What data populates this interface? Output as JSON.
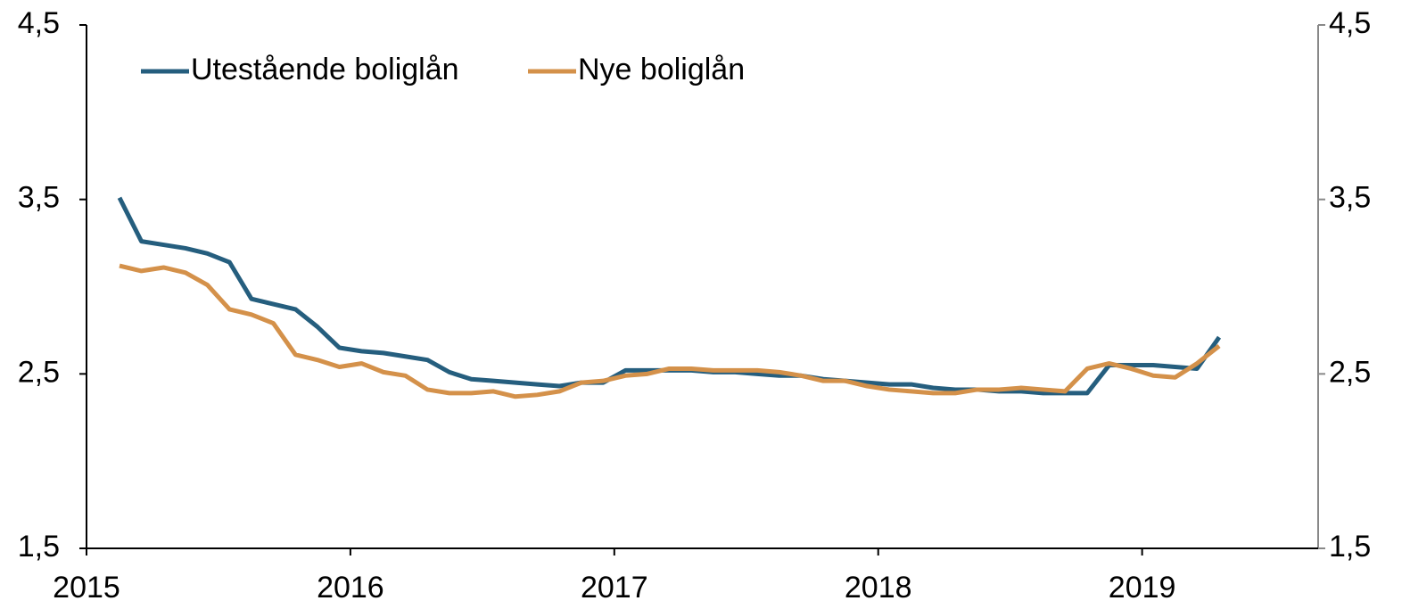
{
  "chart_data": {
    "type": "line",
    "xlim": [
      2015,
      2019.667
    ],
    "xticks": [
      2015,
      2016,
      2017,
      2018,
      2019
    ],
    "ylim": [
      1.5,
      4.5
    ],
    "yticks": [
      {
        "value": 1.5,
        "label": "1,5"
      },
      {
        "value": 2.5,
        "label": "2,5"
      },
      {
        "value": 3.5,
        "label": "3,5"
      },
      {
        "value": 4.5,
        "label": "4,5"
      }
    ],
    "y2lim": [
      1.5,
      4.5
    ],
    "y2ticks": [
      {
        "value": 1.5,
        "label": "1,5"
      },
      {
        "value": 2.5,
        "label": "2,5"
      },
      {
        "value": 3.5,
        "label": "3,5"
      },
      {
        "value": 4.5,
        "label": "4,5"
      }
    ],
    "legend": "upper left",
    "x": [
      2015.125,
      2015.208,
      2015.292,
      2015.375,
      2015.458,
      2015.542,
      2015.625,
      2015.708,
      2015.792,
      2015.875,
      2015.958,
      2016.042,
      2016.125,
      2016.208,
      2016.292,
      2016.375,
      2016.458,
      2016.542,
      2016.625,
      2016.708,
      2016.792,
      2016.875,
      2016.958,
      2017.042,
      2017.125,
      2017.208,
      2017.292,
      2017.375,
      2017.458,
      2017.542,
      2017.625,
      2017.708,
      2017.792,
      2017.875,
      2017.958,
      2018.042,
      2018.125,
      2018.208,
      2018.292,
      2018.375,
      2018.458,
      2018.542,
      2018.625,
      2018.708,
      2018.792,
      2018.875,
      2018.958,
      2019.042,
      2019.125,
      2019.208,
      2019.292
    ],
    "series": [
      {
        "name": "Utestående boliglån",
        "color": "#255e7e",
        "values": [
          3.51,
          3.26,
          3.24,
          3.22,
          3.19,
          3.14,
          2.93,
          2.9,
          2.87,
          2.77,
          2.65,
          2.63,
          2.62,
          2.6,
          2.58,
          2.51,
          2.47,
          2.46,
          2.45,
          2.44,
          2.43,
          2.45,
          2.45,
          2.52,
          2.52,
          2.52,
          2.52,
          2.51,
          2.51,
          2.5,
          2.49,
          2.49,
          2.47,
          2.46,
          2.45,
          2.44,
          2.44,
          2.42,
          2.41,
          2.41,
          2.4,
          2.4,
          2.39,
          2.39,
          2.39,
          2.55,
          2.55,
          2.55,
          2.54,
          2.53,
          2.71
        ]
      },
      {
        "name": "Nye boliglån",
        "color": "#d4914a",
        "values": [
          3.12,
          3.09,
          3.11,
          3.08,
          3.01,
          2.87,
          2.84,
          2.79,
          2.61,
          2.58,
          2.54,
          2.56,
          2.51,
          2.49,
          2.41,
          2.39,
          2.39,
          2.4,
          2.37,
          2.38,
          2.4,
          2.45,
          2.46,
          2.49,
          2.5,
          2.53,
          2.53,
          2.52,
          2.52,
          2.52,
          2.51,
          2.49,
          2.46,
          2.46,
          2.43,
          2.41,
          2.4,
          2.39,
          2.39,
          2.41,
          2.41,
          2.42,
          2.41,
          2.4,
          2.53,
          2.56,
          2.53,
          2.49,
          2.48,
          2.56,
          2.66
        ]
      }
    ]
  }
}
